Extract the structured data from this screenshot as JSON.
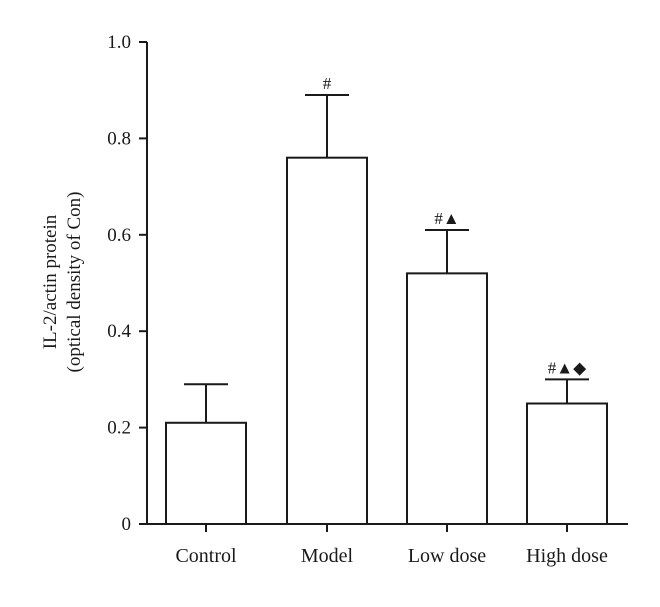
{
  "chart_data": {
    "type": "bar",
    "categories": [
      "Control",
      "Model",
      "Low dose",
      "High dose"
    ],
    "values": [
      0.21,
      0.76,
      0.52,
      0.25
    ],
    "error_upper": [
      0.29,
      0.89,
      0.61,
      0.3
    ],
    "annotations": [
      "",
      "#",
      "#▲",
      "#▲◆"
    ],
    "ylabel": [
      "IL-2/actin protein",
      "(optical density of Con)"
    ],
    "ylim": [
      0,
      1.0
    ],
    "yticks": [
      0,
      0.2,
      0.4,
      0.6,
      0.8,
      1.0
    ],
    "ytick_labels": [
      "0",
      "0.2",
      "0.4",
      "0.6",
      "0.8",
      "1.0"
    ],
    "grid": false,
    "bar_fill": "#ffffff",
    "stroke_color": "#1a1a1a"
  }
}
